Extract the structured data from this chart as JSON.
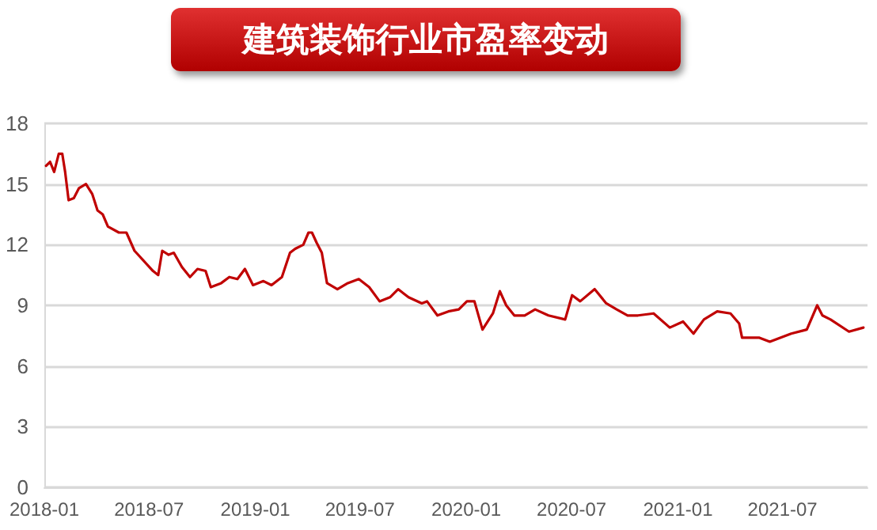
{
  "chart_data": {
    "type": "line",
    "title": "建筑装饰行业市盈率变动",
    "x": [
      "2018-01-04",
      "2018-01-11",
      "2018-01-18",
      "2018-01-26",
      "2018-02-01",
      "2018-02-06",
      "2018-02-12",
      "2018-02-21",
      "2018-03-02",
      "2018-03-14",
      "2018-03-25",
      "2018-04-03",
      "2018-04-12",
      "2018-04-21",
      "2018-05-10",
      "2018-05-23",
      "2018-06-06",
      "2018-07-08",
      "2018-07-17",
      "2018-07-24",
      "2018-08-04",
      "2018-08-13",
      "2018-08-27",
      "2018-09-10",
      "2018-09-23",
      "2018-10-07",
      "2018-10-16",
      "2018-11-03",
      "2018-11-17",
      "2018-12-01",
      "2018-12-14",
      "2018-12-28",
      "2019-01-15",
      "2019-01-29",
      "2019-02-16",
      "2019-03-02",
      "2019-03-11",
      "2019-03-25",
      "2019-04-03",
      "2019-04-09",
      "2019-04-17",
      "2019-04-26",
      "2019-05-05",
      "2019-05-23",
      "2019-06-10",
      "2019-06-29",
      "2019-07-17",
      "2019-08-04",
      "2019-08-22",
      "2019-09-05",
      "2019-09-23",
      "2019-10-16",
      "2019-10-25",
      "2019-11-12",
      "2019-12-01",
      "2019-12-19",
      "2020-01-02",
      "2020-01-15",
      "2020-01-29",
      "2020-02-16",
      "2020-02-28",
      "2020-03-10",
      "2020-03-24",
      "2020-04-11",
      "2020-04-29",
      "2020-05-22",
      "2020-06-20",
      "2020-07-02",
      "2020-07-16",
      "2020-08-10",
      "2020-08-30",
      "2020-09-17",
      "2020-10-06",
      "2020-10-24",
      "2020-11-20",
      "2020-12-18",
      "2021-01-10",
      "2021-01-28",
      "2021-02-15",
      "2021-03-10",
      "2021-04-02",
      "2021-04-17",
      "2021-04-22",
      "2021-05-22",
      "2021-06-09",
      "2021-07-16",
      "2021-08-12",
      "2021-08-30",
      "2021-09-08",
      "2021-09-22",
      "2021-10-24",
      "2021-11-18"
    ],
    "series": [
      {
        "color": "#c00000",
        "values": [
          15.9,
          16.1,
          15.6,
          16.5,
          16.5,
          15.6,
          14.2,
          14.3,
          14.8,
          15.0,
          14.5,
          13.7,
          13.5,
          12.9,
          12.6,
          12.6,
          11.7,
          10.7,
          10.5,
          11.7,
          11.5,
          11.6,
          10.9,
          10.4,
          10.8,
          10.7,
          9.9,
          10.1,
          10.4,
          10.3,
          10.8,
          10.0,
          10.2,
          10.0,
          10.4,
          11.6,
          11.8,
          12.0,
          12.6,
          12.6,
          12.1,
          11.6,
          10.1,
          9.8,
          10.1,
          10.3,
          9.9,
          9.2,
          9.4,
          9.8,
          9.4,
          9.1,
          9.2,
          8.5,
          8.7,
          8.8,
          9.2,
          9.2,
          7.8,
          8.6,
          9.7,
          9.0,
          8.5,
          8.5,
          8.8,
          8.5,
          8.3,
          9.5,
          9.2,
          9.8,
          9.1,
          8.8,
          8.5,
          8.5,
          8.6,
          7.9,
          8.2,
          7.6,
          8.3,
          8.7,
          8.6,
          8.1,
          7.4,
          7.4,
          7.2,
          7.6,
          7.8,
          9.0,
          8.5,
          8.3,
          7.7,
          7.9
        ]
      }
    ],
    "xlim": [
      "2018-01-01",
      "2021-11-25"
    ],
    "xticks": [
      "2018-01",
      "2018-07",
      "2019-01",
      "2019-07",
      "2020-01",
      "2020-07",
      "2021-01",
      "2021-07"
    ],
    "ylim": [
      0,
      18
    ],
    "yticks": [
      0,
      3,
      6,
      9,
      12,
      15,
      18
    ],
    "grid": "y",
    "marker": "none",
    "line_style": "solid"
  }
}
